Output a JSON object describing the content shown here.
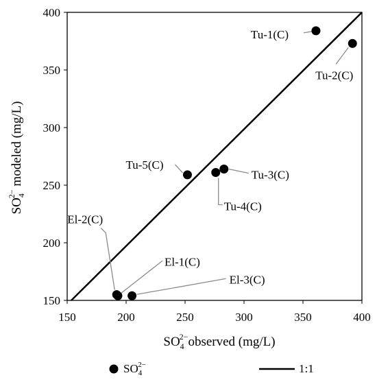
{
  "chart_data": {
    "type": "scatter",
    "xlabel": {
      "base": "SO",
      "sub": "4",
      "sup": "2−",
      "rest": "observed (mg/L)"
    },
    "ylabel": {
      "base": "SO",
      "sub": "4",
      "sup": "2−",
      "rest": " modeled (mg/L)"
    },
    "xlim": [
      150,
      400
    ],
    "ylim": [
      150,
      400
    ],
    "x_ticks": [
      150,
      200,
      250,
      300,
      350,
      400
    ],
    "y_ticks": [
      150,
      200,
      250,
      300,
      350,
      400
    ],
    "grid": false,
    "series": [
      {
        "marker": "filled-circle",
        "color": "#000000",
        "points": [
          {
            "label": "Tu-1(C)",
            "x": 361,
            "y": 384
          },
          {
            "label": "Tu-2(C)",
            "x": 392,
            "y": 373
          },
          {
            "label": "Tu-3(C)",
            "x": 283,
            "y": 264
          },
          {
            "label": "Tu-4(C)",
            "x": 276,
            "y": 261
          },
          {
            "label": "Tu-5(C)",
            "x": 252,
            "y": 259
          },
          {
            "label": "El-1(C)",
            "x": 193,
            "y": 154
          },
          {
            "label": "El-2(C)",
            "x": 192,
            "y": 155
          },
          {
            "label": "El-3(C)",
            "x": 205,
            "y": 154
          }
        ]
      }
    ],
    "reference_line": {
      "name": "1:1",
      "from": [
        150,
        150
      ],
      "to": [
        400,
        400
      ]
    },
    "legend": {
      "placement": "bottom",
      "items": [
        {
          "marker": "filled-circle",
          "label": {
            "base": "SO",
            "sub": "4",
            "sup": "2−"
          }
        },
        {
          "marker": "line",
          "label": "1:1"
        }
      ]
    }
  }
}
